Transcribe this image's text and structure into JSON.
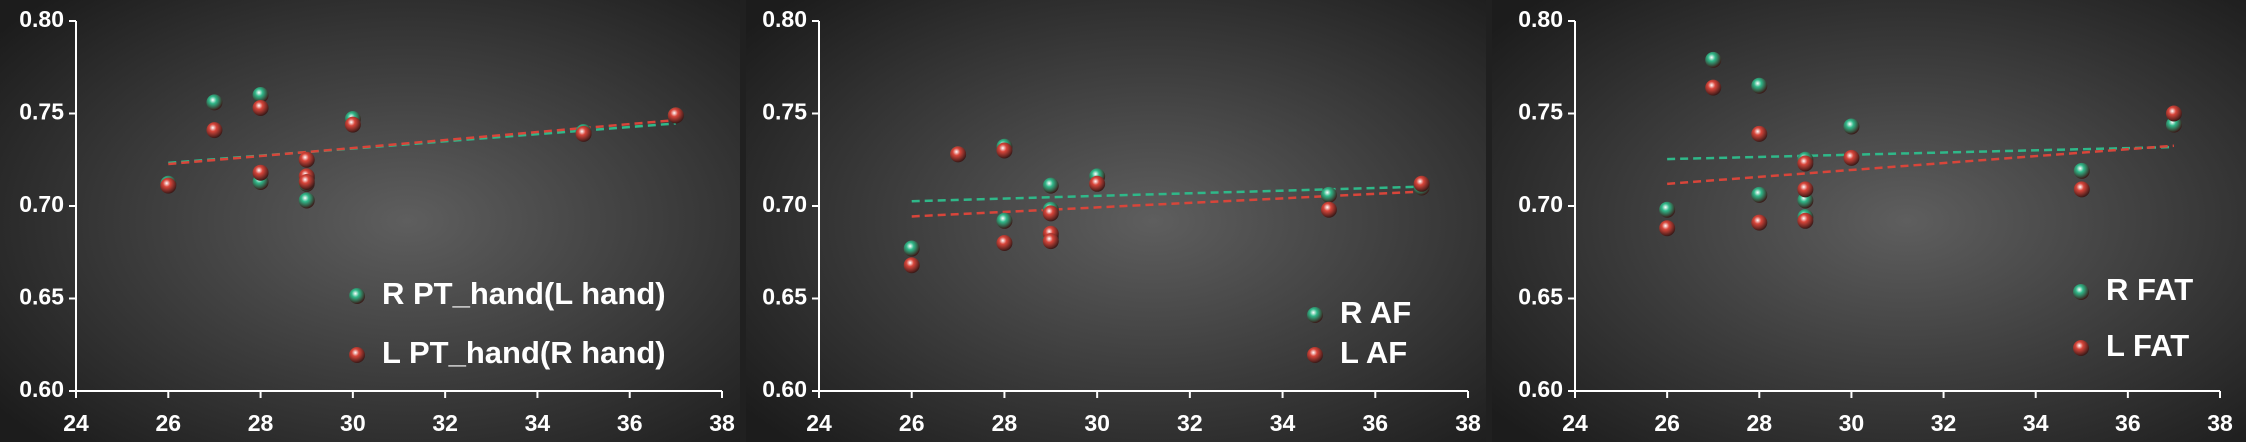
{
  "chart_data": [
    {
      "type": "scatter",
      "trendline": true,
      "x": [
        26,
        27,
        28,
        28,
        29,
        29,
        29,
        30,
        35,
        37
      ],
      "series": [
        {
          "name": "R PT_hand(L hand)",
          "color": "#2fb889",
          "values": [
            0.712,
            0.756,
            0.76,
            0.713,
            0.715,
            0.703,
            0.712,
            0.747,
            0.74,
            0.749
          ]
        },
        {
          "name": "L PT_hand(R hand)",
          "color": "#d8453a",
          "values": [
            0.711,
            0.741,
            0.753,
            0.718,
            0.725,
            0.716,
            0.713,
            0.744,
            0.739,
            0.749
          ]
        }
      ],
      "xlim": [
        24,
        38
      ],
      "xticks": [
        24,
        26,
        28,
        30,
        32,
        34,
        36,
        38
      ],
      "ylim": [
        0.6,
        0.8
      ],
      "yticks": [
        {
          "value": 0.6,
          "label": "0.60"
        },
        {
          "value": 0.65,
          "label": "0.65"
        },
        {
          "value": 0.7,
          "label": "0.70"
        },
        {
          "value": 0.75,
          "label": "0.75"
        },
        {
          "value": 0.8,
          "label": "0.80"
        }
      ]
    },
    {
      "type": "scatter",
      "trendline": true,
      "x": [
        26,
        27,
        28,
        28,
        29,
        29,
        29,
        30,
        35,
        37
      ],
      "series": [
        {
          "name": "R AF",
          "color": "#2fb889",
          "values": [
            0.677,
            0.728,
            0.692,
            0.732,
            0.711,
            0.698,
            0.683,
            0.716,
            0.706,
            0.71
          ]
        },
        {
          "name": "L AF",
          "color": "#d8453a",
          "values": [
            0.668,
            0.728,
            0.68,
            0.73,
            0.685,
            0.681,
            0.696,
            0.712,
            0.698,
            0.712
          ]
        }
      ],
      "xlim": [
        24,
        38
      ],
      "xticks": [
        24,
        26,
        28,
        30,
        32,
        34,
        36,
        38
      ],
      "ylim": [
        0.6,
        0.8
      ],
      "yticks": [
        {
          "value": 0.6,
          "label": "0.60"
        },
        {
          "value": 0.65,
          "label": "0.65"
        },
        {
          "value": 0.7,
          "label": "0.70"
        },
        {
          "value": 0.75,
          "label": "0.75"
        },
        {
          "value": 0.8,
          "label": "0.80"
        }
      ]
    },
    {
      "type": "scatter",
      "trendline": true,
      "x": [
        26,
        27,
        28,
        28,
        29,
        29,
        29,
        30,
        35,
        37
      ],
      "series": [
        {
          "name": "R FAT",
          "color": "#2fb889",
          "values": [
            0.698,
            0.779,
            0.765,
            0.706,
            0.725,
            0.694,
            0.703,
            0.743,
            0.719,
            0.744
          ]
        },
        {
          "name": "L FAT",
          "color": "#d8453a",
          "values": [
            0.688,
            0.764,
            0.739,
            0.691,
            0.723,
            0.692,
            0.709,
            0.726,
            0.709,
            0.75
          ]
        }
      ],
      "xlim": [
        24,
        38
      ],
      "xticks": [
        24,
        26,
        28,
        30,
        32,
        34,
        36,
        38
      ],
      "ylim": [
        0.6,
        0.8
      ],
      "yticks": [
        {
          "value": 0.6,
          "label": "0.60"
        },
        {
          "value": 0.65,
          "label": "0.65"
        },
        {
          "value": 0.7,
          "label": "0.70"
        },
        {
          "value": 0.75,
          "label": "0.75"
        },
        {
          "value": 0.8,
          "label": "0.80"
        }
      ]
    }
  ]
}
